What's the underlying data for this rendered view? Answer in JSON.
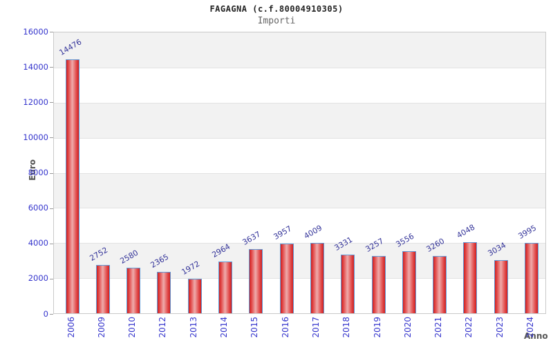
{
  "chart_data": {
    "type": "bar",
    "title": "FAGAGNA (c.f.80004910305)",
    "subtitle": "Importi",
    "xlabel": "Anno",
    "ylabel": "Euro",
    "categories": [
      "2006",
      "2009",
      "2010",
      "2012",
      "2013",
      "2014",
      "2015",
      "2016",
      "2017",
      "2018",
      "2019",
      "2020",
      "2021",
      "2022",
      "2023",
      "2024"
    ],
    "values": [
      14476,
      2752,
      2580,
      2365,
      1972,
      2964,
      3637,
      3957,
      4009,
      3331,
      3257,
      3556,
      3260,
      4048,
      3034,
      3995
    ],
    "ylim": [
      0,
      16000
    ],
    "ytick_step": 2000,
    "ytick_labels": [
      "0",
      "2000",
      "4000",
      "6000",
      "8000",
      "10000",
      "12000",
      "14000",
      "16000"
    ],
    "grid": "horizontal alternating bands, gray/white per 2000",
    "legend": "none",
    "colors": {
      "bar_fill_edge": "#cf1f1f",
      "bar_fill_center": "#efabab",
      "bar_border": "#5f9bd8",
      "value_label": "#333399",
      "axis_tick_text": "#3333cc",
      "axis_title_text": "#555555",
      "band_gray": "#f2f2f2",
      "band_white": "#ffffff",
      "gridline": "#e2e2e2",
      "plot_border": "#c9c9c9"
    }
  }
}
